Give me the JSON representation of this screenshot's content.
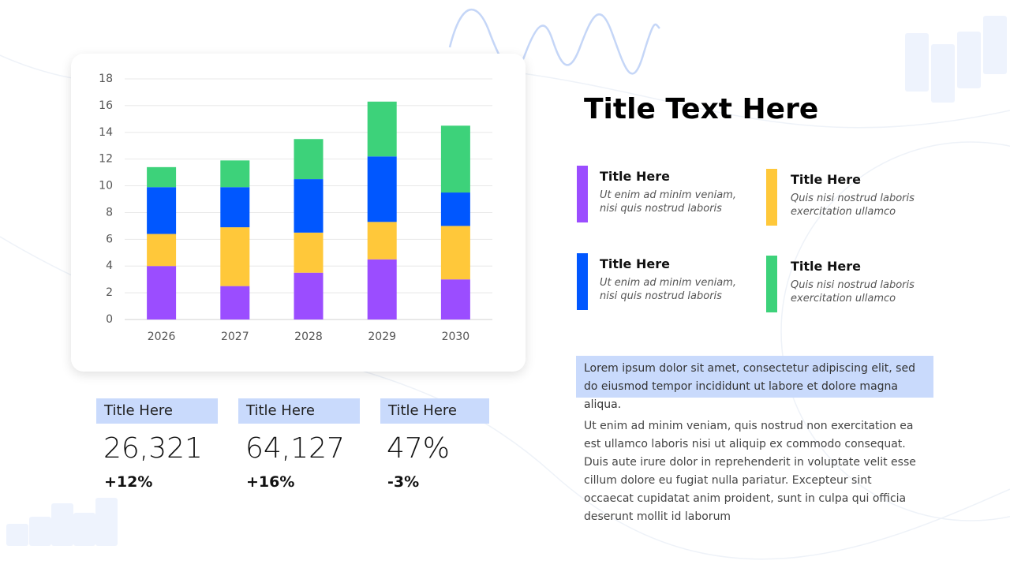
{
  "chart_data": {
    "type": "stacked_bar",
    "categories": [
      "2026",
      "2027",
      "2028",
      "2029",
      "2030"
    ],
    "series": [
      {
        "color": "#9b4dff",
        "values": [
          4,
          2.5,
          3.5,
          4.5,
          3
        ]
      },
      {
        "color": "#ffc83a",
        "values": [
          2.4,
          4.4,
          3,
          2.8,
          4
        ]
      },
      {
        "color": "#0057ff",
        "values": [
          3.5,
          3,
          4,
          4.9,
          2.5
        ]
      },
      {
        "color": "#3dd27a",
        "values": [
          1.5,
          2,
          3,
          4.1,
          5
        ]
      }
    ],
    "ylim": [
      0,
      18
    ],
    "yticks": [
      0,
      2,
      4,
      6,
      8,
      10,
      12,
      14,
      16,
      18
    ],
    "grid": true
  },
  "slide": {
    "title": "Title Text Here",
    "legend_items": [
      {
        "title": "Title Here",
        "text": "Ut enim ad minim veniam, nisi quis nostrud laboris"
      },
      {
        "title": "Title Here",
        "text": "Quis nisi nostrud laboris exercitation ullamco"
      },
      {
        "title": "Title Here",
        "text": "Ut enim ad minim veniam, nisi quis nostrud laboris"
      },
      {
        "title": "Title Here",
        "text": "Quis nisi nostrud laboris exercitation ullamco"
      }
    ],
    "stats": [
      {
        "title": "Title Here",
        "value": "26,321",
        "change": "+12%"
      },
      {
        "title": "Title Here",
        "value": "64,127",
        "change": "+16%"
      },
      {
        "title": "Title Here",
        "value": "47%",
        "change": "-3%"
      }
    ],
    "highlight": "Lorem ipsum dolor sit amet, consectetur adipiscing elit, sed do eiusmod tempor incididunt ut labore et dolore magna aliqua.",
    "paragraph": "Ut enim ad minim veniam, quis nostrud non exercitation ea est ullamco laboris nisi ut aliquip ex commodo consequat. Duis aute irure dolor in reprehenderit in voluptate velit esse cillum dolore eu fugiat nulla pariatur. Excepteur sint occaecat cupidatat anim proident, sunt in culpa qui officia deserunt mollit id laborum"
  }
}
